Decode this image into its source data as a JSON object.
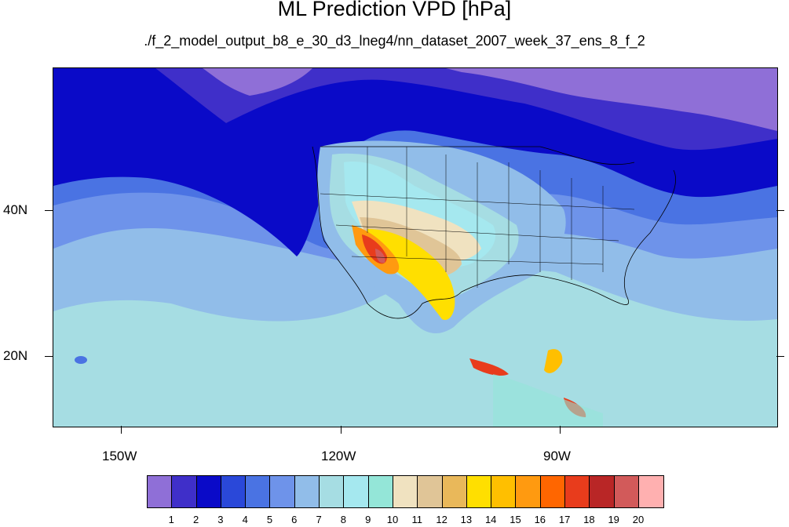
{
  "title": "ML Prediction VPD [hPa]",
  "subtitle": "./f_2_model_output_b8_e_30_d3_lneg4/nn_dataset_2007_week_37_ens_8_f_2",
  "axes": {
    "y_labels": [
      "40N",
      "20N"
    ],
    "x_labels": [
      "150W",
      "120W",
      "90W"
    ]
  },
  "colorbar": {
    "labels": [
      "1",
      "2",
      "3",
      "4",
      "5",
      "6",
      "7",
      "8",
      "9",
      "10",
      "11",
      "12",
      "13",
      "14",
      "15",
      "16",
      "17",
      "18",
      "19",
      "20"
    ],
    "colors": [
      "#8f6fd7",
      "#3f2fc9",
      "#0a0ac8",
      "#2a48d9",
      "#4a73e3",
      "#6e93ea",
      "#91bde9",
      "#a6dde3",
      "#a5e8ef",
      "#94e6d8",
      "#f0e2c0",
      "#e0c597",
      "#e9b85a",
      "#ffdf00",
      "#ffbf00",
      "#ff9a10",
      "#ff6600",
      "#e83c1c",
      "#b92626",
      "#d25a5a",
      "#ffb0b0"
    ]
  }
}
